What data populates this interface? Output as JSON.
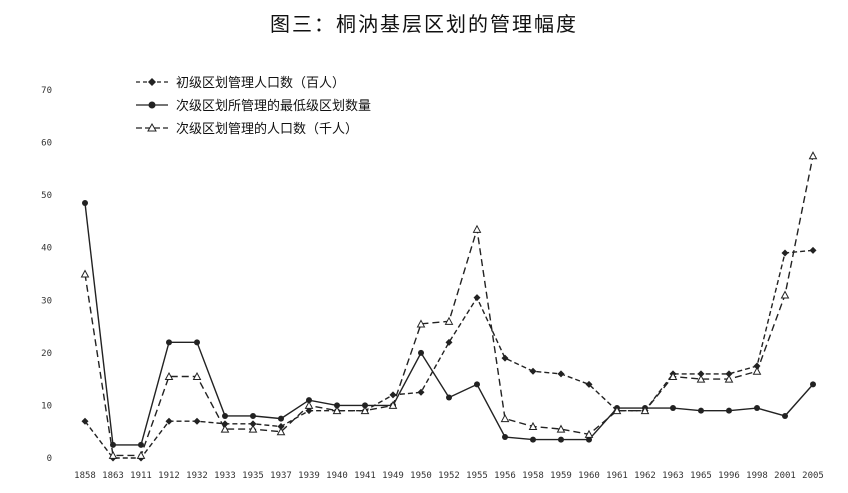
{
  "chart_data": {
    "type": "line",
    "title": "图三：桐汭基层区划的管理幅度",
    "categories": [
      "1858",
      "1863",
      "1911",
      "1912",
      "1932",
      "1933",
      "1935",
      "1937",
      "1939",
      "1940",
      "1941",
      "1949",
      "1950",
      "1952",
      "1955",
      "1956",
      "1958",
      "1959",
      "1960",
      "1961",
      "1962",
      "1963",
      "1965",
      "1996",
      "1998",
      "2001",
      "2005"
    ],
    "ylim": [
      0,
      70
    ],
    "yticks": [
      0,
      10,
      20,
      30,
      40,
      50,
      60,
      70
    ],
    "grid": false,
    "legend_position": "top-left",
    "series": [
      {
        "name": "初级区划管理人口数（百人）",
        "style": "dashed-diamond",
        "values": [
          7,
          0,
          0,
          7,
          7,
          6.5,
          6.5,
          6,
          9,
          9,
          9,
          12,
          12.5,
          22,
          30.5,
          19,
          16.5,
          16,
          14,
          9,
          9,
          16,
          16,
          16,
          17.5,
          39,
          39.5
        ]
      },
      {
        "name": "次级区划所管理的最低级区划数量",
        "style": "solid-circle",
        "values": [
          48.5,
          2.5,
          2.5,
          22,
          22,
          8,
          8,
          7.5,
          11,
          10,
          10,
          10,
          20,
          11.5,
          14,
          4,
          3.5,
          3.5,
          3.5,
          9.5,
          9.5,
          9.5,
          9,
          9,
          9.5,
          8,
          14
        ]
      },
      {
        "name": "次级区划管理的人口数（千人）",
        "style": "dashed-triangle",
        "values": [
          35,
          0.5,
          0.5,
          15.5,
          15.5,
          5.5,
          5.5,
          5,
          10,
          9,
          9,
          10,
          25.5,
          26,
          43.5,
          7.5,
          6,
          5.5,
          4.5,
          9,
          9,
          15.5,
          15,
          15,
          16.5,
          31,
          57.5
        ]
      }
    ]
  }
}
